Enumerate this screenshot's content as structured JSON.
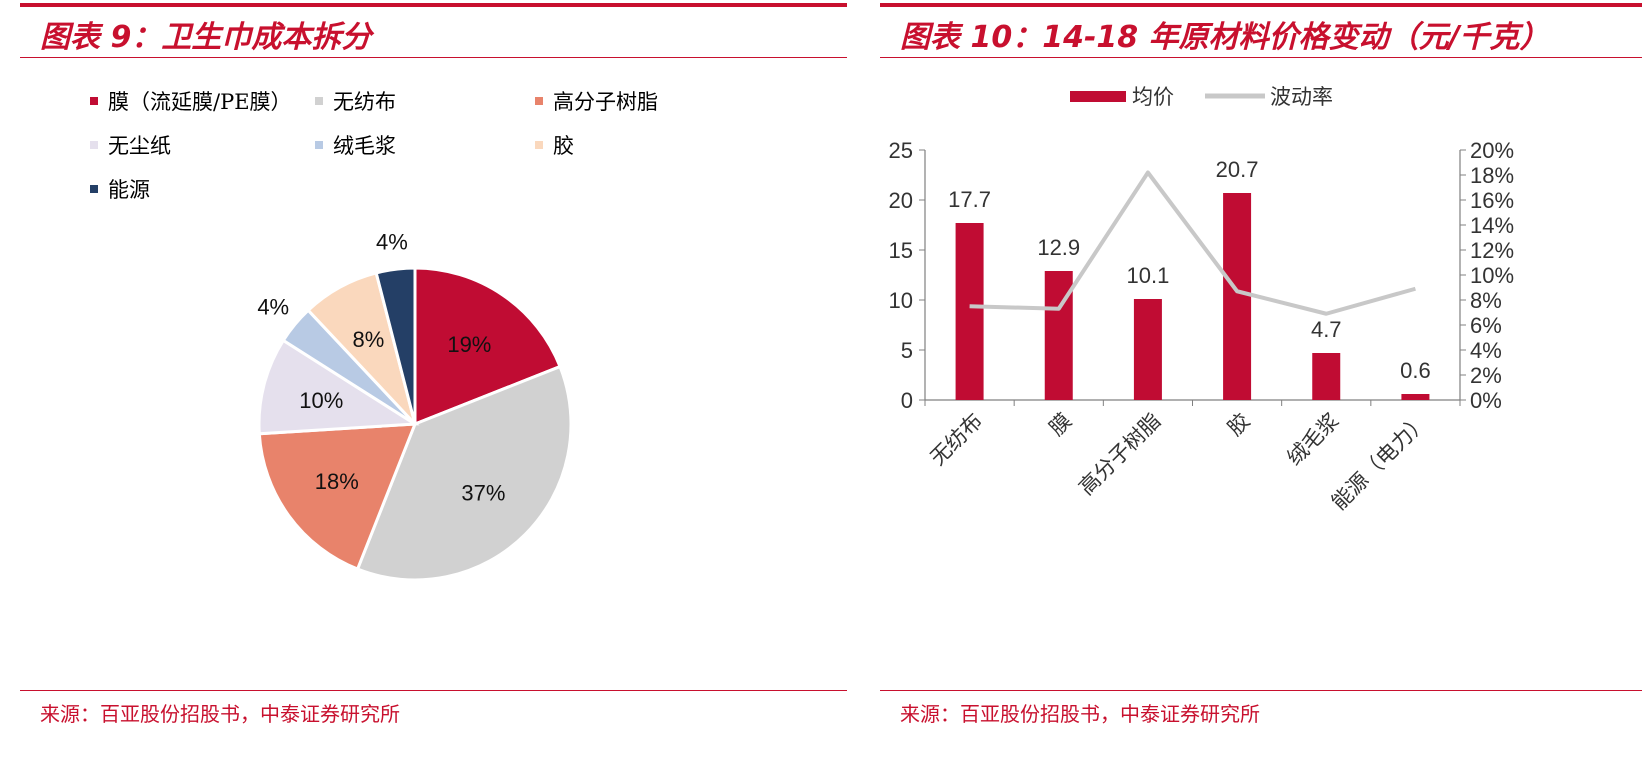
{
  "left": {
    "title": "图表 9：卫生巾成本拆分",
    "source": "来源：百亚股份招股书，中泰证券研究所"
  },
  "right": {
    "title": "图表 10：14-18 年原材料价格变动（元/千克）",
    "source": "来源：百亚股份招股书，中泰证券研究所"
  },
  "chart_data": [
    {
      "type": "pie",
      "title": "图表 9：卫生巾成本拆分",
      "legend_position": "top",
      "slices": [
        {
          "label": "膜（流延膜/PE膜）",
          "value": 19,
          "value_label": "19%",
          "color": "#c00c33"
        },
        {
          "label": "无纺布",
          "value": 37,
          "value_label": "37%",
          "color": "#d1d1d1"
        },
        {
          "label": "高分子树脂",
          "value": 18,
          "value_label": "18%",
          "color": "#e8836b"
        },
        {
          "label": "无尘纸",
          "value": 10,
          "value_label": "10%",
          "color": "#e5e0ed"
        },
        {
          "label": "绒毛浆",
          "value": 4,
          "value_label": "4%",
          "color": "#b8cae4"
        },
        {
          "label": "胶",
          "value": 8,
          "value_label": "8%",
          "color": "#fad8bd"
        },
        {
          "label": "能源",
          "value": 4,
          "value_label": "4%",
          "color": "#243f66"
        }
      ]
    },
    {
      "type": "bar",
      "title": "图表 10：14-18 年原材料价格变动（元/千克）",
      "legend_position": "top",
      "categories": [
        "无纺布",
        "膜",
        "高分子树脂",
        "胶",
        "绒毛浆",
        "能源（电力）"
      ],
      "series": [
        {
          "name": "均价",
          "type": "bar",
          "axis": "left",
          "color": "#c00c33",
          "values": [
            17.7,
            12.9,
            10.1,
            20.7,
            4.7,
            0.6
          ],
          "value_labels": [
            "17.7",
            "12.9",
            "10.1",
            "20.7",
            "4.7",
            "0.6"
          ]
        },
        {
          "name": "波动率",
          "type": "line",
          "axis": "right",
          "color": "#c8c8c8",
          "values": [
            0.075,
            0.073,
            0.182,
            0.087,
            0.069,
            0.089
          ]
        }
      ],
      "y_left": {
        "min": 0,
        "max": 25,
        "ticks": [
          "0",
          "5",
          "10",
          "15",
          "20",
          "25"
        ]
      },
      "y_right": {
        "min": 0,
        "max": 0.2,
        "ticks": [
          "0%",
          "2%",
          "4%",
          "6%",
          "8%",
          "10%",
          "12%",
          "14%",
          "16%",
          "18%",
          "20%"
        ]
      }
    }
  ]
}
